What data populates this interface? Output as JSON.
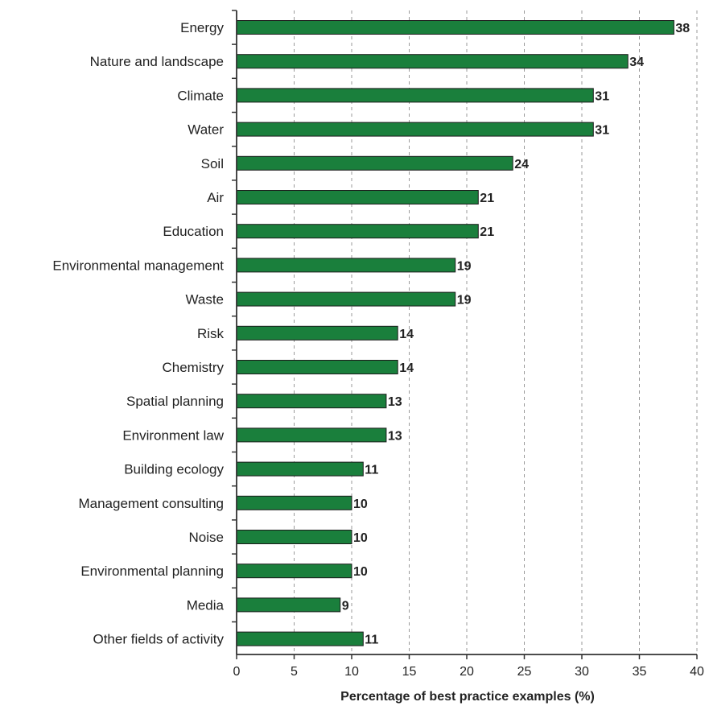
{
  "chart_data": {
    "type": "bar",
    "orientation": "horizontal",
    "categories": [
      "Energy",
      "Nature and landscape",
      "Climate",
      "Water",
      "Soil",
      "Air",
      "Education",
      "Environmental management",
      "Waste",
      "Risk",
      "Chemistry",
      "Spatial planning",
      "Environment law",
      "Building ecology",
      "Management consulting",
      "Noise",
      "Environmental planning",
      "Media",
      "Other fields of activity"
    ],
    "values": [
      38,
      34,
      31,
      31,
      24,
      21,
      21,
      19,
      19,
      14,
      14,
      13,
      13,
      11,
      10,
      10,
      10,
      9,
      11
    ],
    "value_labels": [
      "38",
      "34",
      "31",
      "31",
      "24",
      "21",
      "21",
      "19",
      "19",
      "14",
      "14",
      "13",
      "13",
      "11",
      "10",
      "10",
      "10",
      "9",
      "11"
    ],
    "title": "",
    "xlabel": "Percentage of best practice examples (%)",
    "ylabel": "",
    "xlim": [
      0,
      40
    ],
    "xticks": [
      0,
      5,
      10,
      15,
      20,
      25,
      30,
      35,
      40
    ],
    "xtick_labels": [
      "0",
      "5",
      "10",
      "15",
      "20",
      "25",
      "30",
      "35",
      "40"
    ],
    "grid": "vertical dashed",
    "bar_color": "#1a7f3c",
    "bar_edge_color": "#1b1b1b"
  }
}
